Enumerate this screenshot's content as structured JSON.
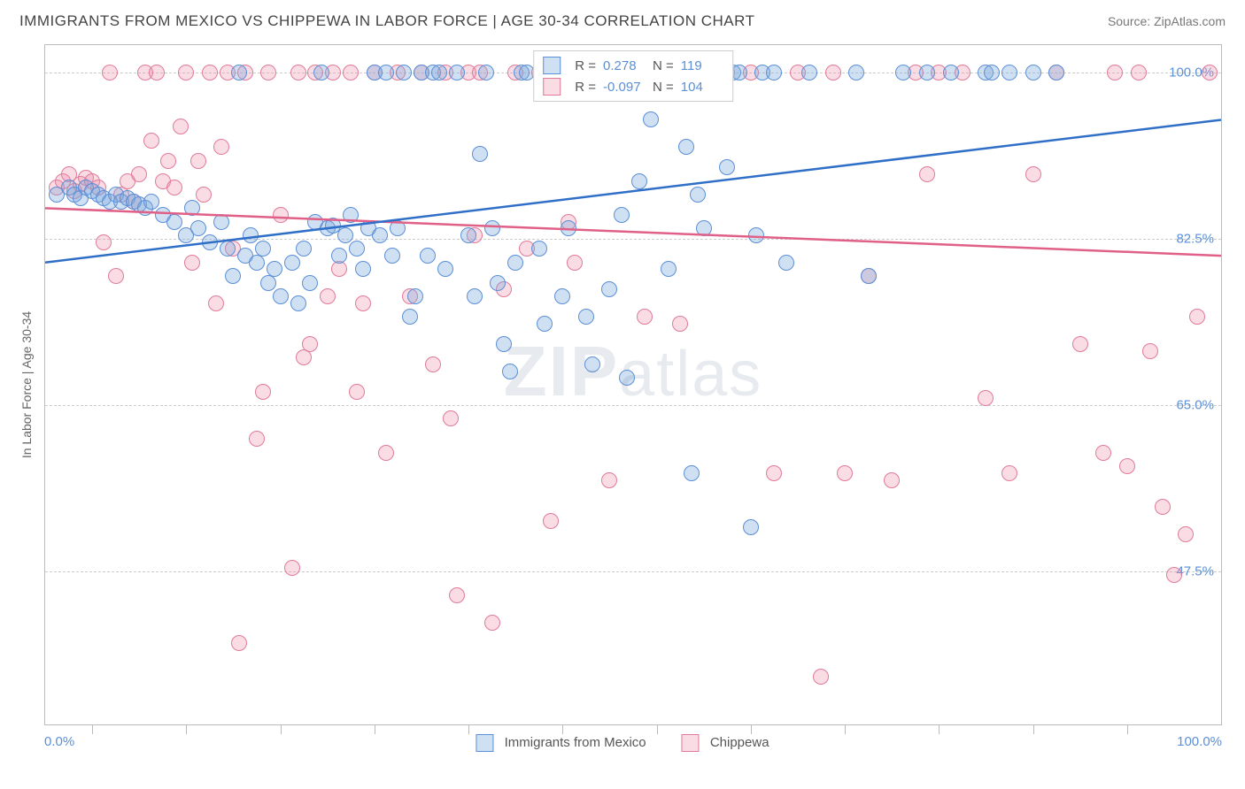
{
  "title": "IMMIGRANTS FROM MEXICO VS CHIPPEWA IN LABOR FORCE | AGE 30-34 CORRELATION CHART",
  "source": "Source: ZipAtlas.com",
  "watermark": "ZIPatlas",
  "ylabel": "In Labor Force | Age 30-34",
  "xaxis": {
    "min_label": "0.0%",
    "max_label": "100.0%",
    "ticks_pct": [
      4,
      12,
      20,
      28,
      36,
      44,
      52,
      60,
      68,
      76,
      84,
      92
    ]
  },
  "yaxis": {
    "gridlines": [
      {
        "value": 100.0,
        "label": "100.0%",
        "pos_pct": 4
      },
      {
        "value": 82.5,
        "label": "82.5%",
        "pos_pct": 28.5
      },
      {
        "value": 65.0,
        "label": "65.0%",
        "pos_pct": 53
      },
      {
        "value": 47.5,
        "label": "47.5%",
        "pos_pct": 77.5
      }
    ]
  },
  "legend_stats": {
    "series1": {
      "r_label": "R =",
      "r_value": "0.278",
      "n_label": "N =",
      "n_value": "119"
    },
    "series2": {
      "r_label": "R =",
      "r_value": "-0.097",
      "n_label": "N =",
      "n_value": "104"
    }
  },
  "series1": {
    "name": "Immigrants from Mexico",
    "fill": "rgba(120,165,220,0.35)",
    "stroke": "#5b8fd6",
    "line_color": "#2f6fc7",
    "line_width": 2.5,
    "trend": {
      "x1_pct": 0,
      "y1_pct": 32,
      "x2_pct": 100,
      "y2_pct": 11
    },
    "points": [
      [
        1,
        22
      ],
      [
        2,
        21
      ],
      [
        2.5,
        22
      ],
      [
        3,
        22.5
      ],
      [
        3.5,
        21
      ],
      [
        4,
        21.5
      ],
      [
        4.5,
        22
      ],
      [
        5,
        22.5
      ],
      [
        5.5,
        23
      ],
      [
        6,
        22
      ],
      [
        6.5,
        23
      ],
      [
        7,
        22.5
      ],
      [
        7.5,
        23
      ],
      [
        8,
        23.5
      ],
      [
        8.5,
        24
      ],
      [
        9,
        23
      ],
      [
        10,
        25
      ],
      [
        11,
        26
      ],
      [
        12,
        28
      ],
      [
        12.5,
        24
      ],
      [
        13,
        27
      ],
      [
        14,
        29
      ],
      [
        15,
        26
      ],
      [
        15.5,
        30
      ],
      [
        16,
        34
      ],
      [
        16.5,
        4
      ],
      [
        17,
        31
      ],
      [
        17.5,
        28
      ],
      [
        18,
        32
      ],
      [
        18.5,
        30
      ],
      [
        19,
        35
      ],
      [
        19.5,
        33
      ],
      [
        20,
        37
      ],
      [
        21,
        32
      ],
      [
        21.5,
        38
      ],
      [
        22,
        30
      ],
      [
        22.5,
        35
      ],
      [
        23,
        26
      ],
      [
        23.5,
        4
      ],
      [
        24,
        27
      ],
      [
        24.5,
        26.5
      ],
      [
        25,
        31
      ],
      [
        25.5,
        28
      ],
      [
        26,
        25
      ],
      [
        26.5,
        30
      ],
      [
        27,
        33
      ],
      [
        27.5,
        27
      ],
      [
        28,
        4
      ],
      [
        28.5,
        28
      ],
      [
        29,
        4
      ],
      [
        29.5,
        31
      ],
      [
        30,
        27
      ],
      [
        30.5,
        4
      ],
      [
        31,
        40
      ],
      [
        31.5,
        37
      ],
      [
        32,
        4
      ],
      [
        32.5,
        31
      ],
      [
        33,
        4
      ],
      [
        33.5,
        4
      ],
      [
        34,
        33
      ],
      [
        35,
        4
      ],
      [
        36,
        28
      ],
      [
        36.5,
        37
      ],
      [
        37,
        16
      ],
      [
        37.5,
        4
      ],
      [
        38,
        27
      ],
      [
        38.5,
        35
      ],
      [
        39,
        44
      ],
      [
        39.5,
        48
      ],
      [
        40,
        32
      ],
      [
        40.5,
        4
      ],
      [
        41,
        4
      ],
      [
        42,
        30
      ],
      [
        42.5,
        41
      ],
      [
        43,
        4
      ],
      [
        43.5,
        4
      ],
      [
        44,
        37
      ],
      [
        44.5,
        27
      ],
      [
        45,
        4
      ],
      [
        45.5,
        4
      ],
      [
        46,
        40
      ],
      [
        46.5,
        47
      ],
      [
        47,
        4
      ],
      [
        48,
        36
      ],
      [
        48.5,
        4
      ],
      [
        49,
        25
      ],
      [
        49.5,
        49
      ],
      [
        50,
        4
      ],
      [
        50.5,
        20
      ],
      [
        51,
        4
      ],
      [
        51.5,
        11
      ],
      [
        52,
        4
      ],
      [
        53,
        33
      ],
      [
        54,
        4
      ],
      [
        54.5,
        15
      ],
      [
        55,
        63
      ],
      [
        55.5,
        22
      ],
      [
        56,
        27
      ],
      [
        56.5,
        4
      ],
      [
        57,
        4
      ],
      [
        58,
        18
      ],
      [
        58.5,
        4
      ],
      [
        59,
        4
      ],
      [
        60,
        71
      ],
      [
        60.5,
        28
      ],
      [
        61,
        4
      ],
      [
        62,
        4
      ],
      [
        63,
        32
      ],
      [
        65,
        4
      ],
      [
        69,
        4
      ],
      [
        70,
        34
      ],
      [
        73,
        4
      ],
      [
        75,
        4
      ],
      [
        77,
        4
      ],
      [
        80,
        4
      ],
      [
        80.5,
        4
      ],
      [
        82,
        4
      ],
      [
        84,
        4
      ],
      [
        86,
        4
      ]
    ]
  },
  "series2": {
    "name": "Chippewa",
    "fill": "rgba(235,140,165,0.30)",
    "stroke": "#e07b9a",
    "line_color": "#e06088",
    "line_width": 2.5,
    "trend": {
      "x1_pct": 0,
      "y1_pct": 24,
      "x2_pct": 100,
      "y2_pct": 31
    },
    "points": [
      [
        1,
        21
      ],
      [
        1.5,
        20
      ],
      [
        2,
        19
      ],
      [
        2.5,
        21.5
      ],
      [
        3,
        20.5
      ],
      [
        3.5,
        19.5
      ],
      [
        4,
        20
      ],
      [
        4.5,
        21
      ],
      [
        5,
        29
      ],
      [
        5.5,
        4
      ],
      [
        6,
        34
      ],
      [
        6.5,
        22
      ],
      [
        7,
        20
      ],
      [
        7.5,
        23
      ],
      [
        8,
        19
      ],
      [
        8.5,
        4
      ],
      [
        9,
        14
      ],
      [
        9.5,
        4
      ],
      [
        10,
        20
      ],
      [
        10.5,
        17
      ],
      [
        11,
        21
      ],
      [
        11.5,
        12
      ],
      [
        12,
        4
      ],
      [
        12.5,
        32
      ],
      [
        13,
        17
      ],
      [
        13.5,
        22
      ],
      [
        14,
        4
      ],
      [
        14.5,
        38
      ],
      [
        15,
        15
      ],
      [
        15.5,
        4
      ],
      [
        16,
        30
      ],
      [
        16.5,
        88
      ],
      [
        17,
        4
      ],
      [
        18,
        58
      ],
      [
        18.5,
        51
      ],
      [
        19,
        4
      ],
      [
        20,
        25
      ],
      [
        21,
        77
      ],
      [
        21.5,
        4
      ],
      [
        22,
        46
      ],
      [
        22.5,
        44
      ],
      [
        23,
        4
      ],
      [
        24,
        37
      ],
      [
        24.5,
        4
      ],
      [
        25,
        33
      ],
      [
        26,
        4
      ],
      [
        26.5,
        51
      ],
      [
        27,
        38
      ],
      [
        28,
        4
      ],
      [
        29,
        60
      ],
      [
        30,
        4
      ],
      [
        31,
        37
      ],
      [
        32,
        4
      ],
      [
        33,
        47
      ],
      [
        34,
        4
      ],
      [
        34.5,
        55
      ],
      [
        35,
        81
      ],
      [
        36,
        4
      ],
      [
        36.5,
        28
      ],
      [
        37,
        4
      ],
      [
        38,
        85
      ],
      [
        39,
        36
      ],
      [
        40,
        4
      ],
      [
        41,
        30
      ],
      [
        42,
        4
      ],
      [
        43,
        70
      ],
      [
        44,
        4
      ],
      [
        44.5,
        26
      ],
      [
        45,
        32
      ],
      [
        46,
        4
      ],
      [
        48,
        64
      ],
      [
        50,
        4
      ],
      [
        51,
        40
      ],
      [
        52,
        4
      ],
      [
        54,
        41
      ],
      [
        56,
        4
      ],
      [
        58,
        4
      ],
      [
        60,
        4
      ],
      [
        62,
        63
      ],
      [
        64,
        4
      ],
      [
        66,
        93
      ],
      [
        67,
        4
      ],
      [
        68,
        63
      ],
      [
        70,
        34
      ],
      [
        72,
        64
      ],
      [
        74,
        4
      ],
      [
        75,
        19
      ],
      [
        76,
        4
      ],
      [
        78,
        4
      ],
      [
        80,
        52
      ],
      [
        82,
        63
      ],
      [
        84,
        19
      ],
      [
        86,
        4
      ],
      [
        88,
        44
      ],
      [
        90,
        60
      ],
      [
        91,
        4
      ],
      [
        92,
        62
      ],
      [
        93,
        4
      ],
      [
        94,
        45
      ],
      [
        95,
        68
      ],
      [
        96,
        78
      ],
      [
        97,
        72
      ],
      [
        98,
        40
      ],
      [
        99,
        4
      ]
    ]
  },
  "xlegend": {
    "item1": "Immigrants from Mexico",
    "item2": "Chippewa"
  }
}
